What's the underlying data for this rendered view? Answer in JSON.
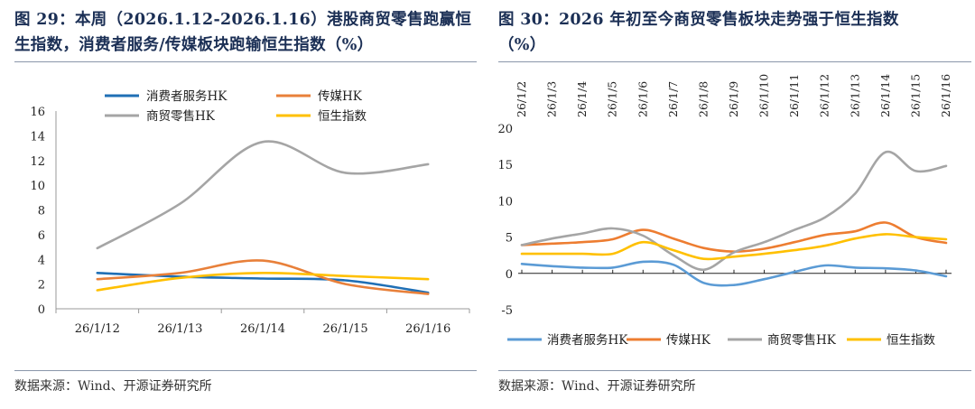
{
  "left": {
    "title": "图 29：本周（2026.1.12-2026.1.16）港股商贸零售跑赢恒生指数，消费者服务/传媒板块跑输恒生指数（%）",
    "title_line1": "图 29：本周（2026.1.12-2026.1.16）港股商贸零售跑赢恒",
    "title_line2": "生指数，消费者服务/传媒板块跑输恒生指数（%）",
    "source": "数据来源：Wind、开源证券研究所"
  },
  "right": {
    "title_line1": "图 30：2026 年初至今商贸零售板块走势强于恒生指数",
    "title_line2": "（%）",
    "source": "数据来源：Wind、开源证券研究所"
  },
  "chart_data": [
    {
      "type": "line",
      "title": "图 29：本周（2026.1.12-2026.1.16）港股商贸零售跑赢恒生指数，消费者服务/传媒板块跑输恒生指数（%）",
      "categories": [
        "26/1/12",
        "26/1/13",
        "26/1/14",
        "26/1/15",
        "26/1/16"
      ],
      "ylim": [
        0,
        16
      ],
      "yticks": [
        0,
        2,
        4,
        6,
        8,
        10,
        12,
        14,
        16
      ],
      "legend_position": "top",
      "series": [
        {
          "name": "消费者服务HK",
          "color": "#1f6fb5",
          "values": [
            2.9,
            2.6,
            2.45,
            2.3,
            1.3
          ]
        },
        {
          "name": "传媒HK",
          "color": "#e8803a",
          "values": [
            2.4,
            2.9,
            3.9,
            2.0,
            1.2
          ]
        },
        {
          "name": "商贸零售HK",
          "color": "#a5a5a5",
          "values": [
            4.9,
            8.5,
            13.5,
            11.0,
            11.7
          ]
        },
        {
          "name": "恒生指数",
          "color": "#ffc000",
          "values": [
            1.5,
            2.5,
            2.9,
            2.65,
            2.4
          ]
        }
      ]
    },
    {
      "type": "line",
      "title": "图 30：2026 年初至今商贸零售板块走势强于恒生指数（%）",
      "categories": [
        "26/1/2",
        "26/1/3",
        "26/1/4",
        "26/1/5",
        "26/1/6",
        "26/1/7",
        "26/1/8",
        "26/1/9",
        "26/1/10",
        "26/1/11",
        "26/1/12",
        "26/1/13",
        "26/1/14",
        "26/1/15",
        "26/1/16"
      ],
      "ylim": [
        -5,
        20
      ],
      "yticks": [
        -5,
        0,
        5,
        10,
        15,
        20
      ],
      "legend_position": "bottom",
      "series": [
        {
          "name": "消费者服务HK",
          "color": "#5b9bd5",
          "values": [
            1.3,
            1.0,
            0.8,
            0.8,
            1.6,
            1.2,
            -1.3,
            -1.6,
            -0.8,
            0.2,
            1.1,
            0.8,
            0.7,
            0.4,
            -0.4
          ]
        },
        {
          "name": "传媒HK",
          "color": "#ed7d31",
          "values": [
            3.9,
            4.1,
            4.3,
            4.7,
            6.0,
            4.8,
            3.5,
            3.0,
            3.4,
            4.3,
            5.3,
            5.8,
            7.0,
            5.0,
            4.2
          ]
        },
        {
          "name": "商贸零售HK",
          "color": "#a5a5a5",
          "values": [
            3.9,
            4.8,
            5.5,
            6.2,
            5.2,
            2.5,
            0.5,
            2.9,
            4.3,
            6.0,
            7.7,
            11.0,
            16.7,
            14.1,
            14.8
          ]
        },
        {
          "name": "恒生指数",
          "color": "#ffc000",
          "values": [
            2.7,
            2.7,
            2.7,
            2.7,
            4.3,
            3.2,
            2.0,
            2.3,
            2.7,
            3.2,
            3.8,
            4.8,
            5.4,
            5.0,
            4.7
          ]
        }
      ]
    }
  ]
}
